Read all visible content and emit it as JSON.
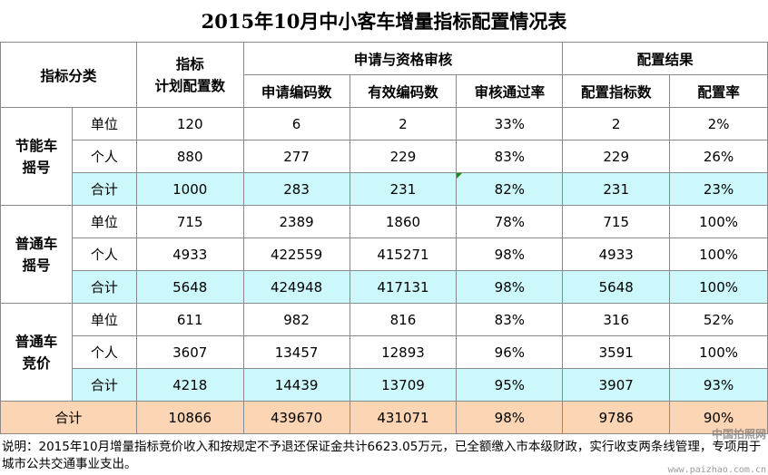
{
  "title": "2015年10月中小客车增量指标配置情况表",
  "headers": {
    "category": "指标分类",
    "plan_line1": "指标",
    "plan_line2": "计划配置数",
    "group_review": "申请与资格审核",
    "group_result": "配置结果",
    "applications": "申请编码数",
    "valid": "有效编码数",
    "pass_rate": "审核通过率",
    "allocated": "配置指标数",
    "alloc_rate": "配置率"
  },
  "groups": [
    {
      "name_line1": "节能车",
      "name_line2": "摇号",
      "rows": [
        {
          "label": "单位",
          "cells": [
            "120",
            "6",
            "2",
            "33%",
            "2",
            "2%"
          ]
        },
        {
          "label": "个人",
          "cells": [
            "880",
            "277",
            "229",
            "83%",
            "229",
            "26%"
          ]
        },
        {
          "label": "合计",
          "cells": [
            "1000",
            "283",
            "231",
            "82%",
            "231",
            "23%"
          ]
        }
      ]
    },
    {
      "name_line1": "普通车",
      "name_line2": "摇号",
      "rows": [
        {
          "label": "单位",
          "cells": [
            "715",
            "2389",
            "1860",
            "78%",
            "715",
            "100%"
          ]
        },
        {
          "label": "个人",
          "cells": [
            "4933",
            "422559",
            "415271",
            "98%",
            "4933",
            "100%"
          ]
        },
        {
          "label": "合计",
          "cells": [
            "5648",
            "424948",
            "417131",
            "98%",
            "5648",
            "100%"
          ]
        }
      ]
    },
    {
      "name_line1": "普通车",
      "name_line2": "竞价",
      "rows": [
        {
          "label": "单位",
          "cells": [
            "611",
            "982",
            "816",
            "83%",
            "316",
            "52%"
          ]
        },
        {
          "label": "个人",
          "cells": [
            "3607",
            "13457",
            "12893",
            "96%",
            "3591",
            "100%"
          ]
        },
        {
          "label": "合计",
          "cells": [
            "4218",
            "14439",
            "13709",
            "95%",
            "3907",
            "93%"
          ]
        }
      ]
    }
  ],
  "grand_total": {
    "label": "合计",
    "cells": [
      "10866",
      "439670",
      "431071",
      "98%",
      "9786",
      "90%"
    ]
  },
  "note": "说明：2015年10月增量指标竞价收入和按规定不予退还保证金共计6623.05万元，已全额缴入市本级财政，实行收支两条线管理，专项用于城市公共交通事业支出。",
  "watermark": {
    "line1": "中国拍照网",
    "line2": "www.paizhao.com.cn"
  },
  "colors": {
    "subtotal_bg": "#ccf8fc",
    "grand_total_bg": "#fbd5b4",
    "border": "#8a8a8a"
  }
}
